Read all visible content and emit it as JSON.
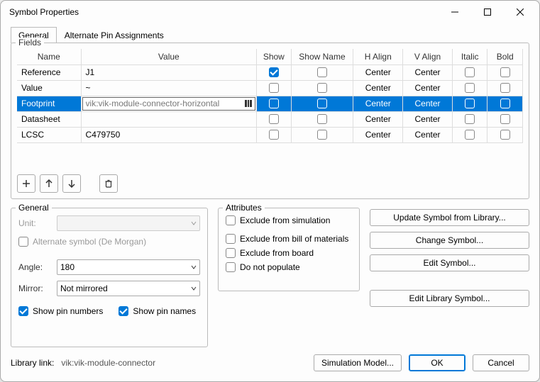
{
  "window": {
    "title": "Symbol Properties"
  },
  "tabs": {
    "general": "General",
    "alt": "Alternate Pin Assignments",
    "active": 0
  },
  "fieldsGroup": {
    "legend": "Fields"
  },
  "columns": [
    "Name",
    "Value",
    "Show",
    "Show Name",
    "H Align",
    "V Align",
    "Italic",
    "Bold"
  ],
  "rows": [
    {
      "name": "Reference",
      "value": "J1",
      "show": true,
      "showName": false,
      "hAlign": "Center",
      "vAlign": "Center",
      "italic": false,
      "bold": false,
      "selected": false
    },
    {
      "name": "Value",
      "value": "~",
      "show": false,
      "showName": false,
      "hAlign": "Center",
      "vAlign": "Center",
      "italic": false,
      "bold": false,
      "selected": false
    },
    {
      "name": "Footprint",
      "value": "vik:vik-module-connector-horizontal",
      "show": false,
      "showName": false,
      "hAlign": "Center",
      "vAlign": "Center",
      "italic": false,
      "bold": false,
      "selected": true
    },
    {
      "name": "Datasheet",
      "value": "",
      "show": false,
      "showName": false,
      "hAlign": "Center",
      "vAlign": "Center",
      "italic": false,
      "bold": false,
      "selected": false
    },
    {
      "name": "LCSC",
      "value": "C479750",
      "show": false,
      "showName": false,
      "hAlign": "Center",
      "vAlign": "Center",
      "italic": false,
      "bold": false,
      "selected": false
    }
  ],
  "generalPanel": {
    "legend": "General",
    "unitLabel": "Unit:",
    "altSymbol": "Alternate symbol (De Morgan)",
    "angleLabel": "Angle:",
    "angleValue": "180",
    "mirrorLabel": "Mirror:",
    "mirrorValue": "Not mirrored",
    "showPinNumbers": "Show pin numbers",
    "showPinNames": "Show pin names"
  },
  "attrPanel": {
    "legend": "Attributes",
    "excludeSim": "Exclude from simulation",
    "excludeBom": "Exclude from bill of materials",
    "excludeBoard": "Exclude from board",
    "dnp": "Do not populate"
  },
  "actions": {
    "updateLib": "Update Symbol from Library...",
    "changeSym": "Change Symbol...",
    "editSym": "Edit Symbol...",
    "editLibSym": "Edit Library Symbol..."
  },
  "footer": {
    "libLinkLabel": "Library link:",
    "libLinkValue": "vik:vik-module-connector",
    "simModel": "Simulation Model...",
    "ok": "OK",
    "cancel": "Cancel"
  },
  "colors": {
    "accent": "#0078d7"
  }
}
